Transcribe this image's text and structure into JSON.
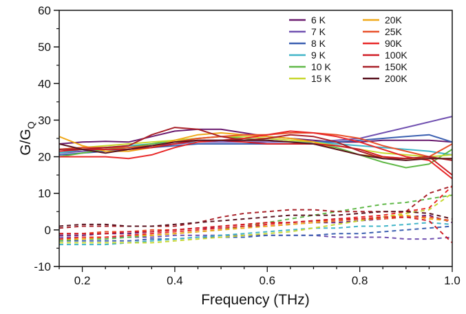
{
  "chart_data": {
    "type": "line",
    "xlabel": "Frequency (THz)",
    "ylabel_main": "G/G",
    "ylabel_sub": "Q",
    "xlim": [
      0.15,
      1.0
    ],
    "ylim": [
      -10,
      60
    ],
    "xticks": [
      0.2,
      0.4,
      0.6,
      0.8,
      1.0
    ],
    "xtick_labels": [
      "0.2",
      "0.4",
      "0.6",
      "0.8",
      "1.0"
    ],
    "yticks": [
      -10,
      0,
      10,
      20,
      30,
      40,
      50,
      60
    ],
    "ytick_labels": [
      "-10",
      "0",
      "10",
      "20",
      "30",
      "40",
      "50",
      "60"
    ],
    "grid": false,
    "legend_position": "top-right",
    "line_styles": {
      "real": "solid",
      "imaginary": "dashed"
    },
    "x": [
      0.15,
      0.2,
      0.25,
      0.3,
      0.35,
      0.4,
      0.45,
      0.5,
      0.55,
      0.6,
      0.65,
      0.7,
      0.75,
      0.8,
      0.85,
      0.9,
      0.95,
      1.0
    ],
    "series": [
      {
        "name": "6 K",
        "color": "#6a1b6f",
        "real": [
          23.5,
          24.0,
          24.2,
          24.0,
          25.5,
          27.0,
          27.5,
          27.5,
          26.5,
          25.5,
          25.0,
          24.5,
          24.0,
          24.0,
          24.5,
          24.5,
          24.5,
          24.0
        ],
        "imag": [
          -1.5,
          -1.5,
          -1.0,
          -1.0,
          -0.5,
          0.0,
          0.5,
          0.5,
          1.0,
          1.0,
          1.5,
          2.0,
          2.0,
          2.5,
          3.0,
          3.5,
          4.0,
          2.0
        ]
      },
      {
        "name": "7 K",
        "color": "#7050b0",
        "real": [
          21.0,
          21.5,
          22.0,
          22.5,
          23.0,
          23.5,
          24.0,
          24.0,
          24.0,
          24.0,
          24.0,
          24.0,
          24.5,
          25.0,
          26.5,
          28.0,
          29.5,
          31.0
        ],
        "imag": [
          -2.0,
          -2.0,
          -2.0,
          -2.0,
          -2.0,
          -1.5,
          -1.5,
          -1.5,
          -1.5,
          -1.5,
          -1.5,
          -1.5,
          -2.0,
          -2.0,
          -2.0,
          -2.5,
          -2.5,
          -2.0
        ]
      },
      {
        "name": "8 K",
        "color": "#3a5fb0",
        "real": [
          20.5,
          21.0,
          21.5,
          22.0,
          22.5,
          23.0,
          23.5,
          23.5,
          23.5,
          23.5,
          23.5,
          24.0,
          24.0,
          24.5,
          25.0,
          25.5,
          26.0,
          24.0
        ],
        "imag": [
          -3.0,
          -3.0,
          -3.0,
          -3.0,
          -2.5,
          -2.5,
          -2.0,
          -2.0,
          -2.0,
          -1.5,
          -1.5,
          -1.5,
          -1.0,
          -1.0,
          -0.5,
          0.0,
          0.5,
          1.0
        ]
      },
      {
        "name": "9 K",
        "color": "#40b4c8",
        "real": [
          21.0,
          22.0,
          22.5,
          23.0,
          23.5,
          24.0,
          24.0,
          24.5,
          24.5,
          24.5,
          24.0,
          24.0,
          23.5,
          23.0,
          22.5,
          22.0,
          21.5,
          20.5
        ],
        "imag": [
          -4.0,
          -4.0,
          -4.0,
          -3.5,
          -3.0,
          -2.5,
          -2.0,
          -1.5,
          -1.0,
          -0.5,
          0.0,
          0.5,
          0.5,
          1.0,
          1.0,
          1.5,
          2.0,
          1.5
        ]
      },
      {
        "name": "10 K",
        "color": "#60b848",
        "real": [
          20.0,
          21.0,
          22.0,
          22.5,
          23.5,
          24.5,
          25.0,
          25.5,
          25.0,
          24.5,
          24.0,
          23.5,
          22.5,
          20.5,
          18.5,
          17.0,
          18.0,
          22.0
        ],
        "imag": [
          -3.0,
          -2.5,
          -2.5,
          -2.0,
          -1.5,
          -1.0,
          -0.5,
          0.0,
          1.0,
          2.0,
          3.0,
          4.0,
          5.0,
          6.0,
          7.0,
          7.5,
          8.5,
          9.5
        ]
      },
      {
        "name": "15 K",
        "color": "#c8d830",
        "real": [
          22.0,
          22.5,
          23.0,
          23.5,
          24.0,
          24.5,
          25.0,
          25.5,
          25.5,
          25.0,
          24.5,
          24.0,
          23.0,
          22.0,
          21.0,
          20.5,
          20.0,
          20.5
        ],
        "imag": [
          -3.5,
          -3.5,
          -3.5,
          -3.5,
          -3.5,
          -3.0,
          -2.5,
          -2.0,
          -1.5,
          -1.0,
          -0.5,
          0.5,
          1.5,
          2.5,
          3.5,
          4.5,
          5.5,
          10.0
        ]
      },
      {
        "name": "20K",
        "color": "#f0a818",
        "real": [
          25.5,
          23.0,
          21.5,
          21.5,
          22.5,
          24.5,
          26.0,
          26.5,
          26.0,
          25.5,
          25.0,
          24.0,
          22.0,
          20.5,
          20.0,
          19.5,
          19.5,
          19.5
        ],
        "imag": [
          -2.5,
          -2.5,
          -2.0,
          -1.5,
          -1.5,
          -1.0,
          -0.5,
          0.0,
          0.5,
          1.0,
          1.5,
          2.0,
          2.5,
          3.0,
          3.5,
          4.0,
          3.0,
          2.5
        ]
      },
      {
        "name": "25K",
        "color": "#e8502a",
        "real": [
          22.0,
          22.5,
          22.5,
          22.5,
          23.0,
          24.0,
          25.0,
          25.5,
          26.0,
          26.0,
          26.5,
          26.5,
          26.0,
          25.0,
          23.0,
          21.5,
          20.0,
          23.5
        ],
        "imag": [
          -1.0,
          -1.0,
          -0.5,
          -0.5,
          0.0,
          0.0,
          0.5,
          1.0,
          1.5,
          2.0,
          2.0,
          2.5,
          2.5,
          3.0,
          3.0,
          3.5,
          3.5,
          2.5
        ]
      },
      {
        "name": "90K",
        "color": "#e82828",
        "real": [
          20.0,
          20.0,
          20.0,
          19.5,
          20.5,
          22.5,
          24.0,
          24.5,
          25.0,
          26.0,
          27.0,
          26.5,
          25.5,
          24.0,
          22.0,
          20.0,
          19.0,
          14.0
        ],
        "imag": [
          -2.5,
          -2.0,
          -2.0,
          -1.5,
          -1.0,
          -0.5,
          0.0,
          0.5,
          1.0,
          1.5,
          2.0,
          2.5,
          3.0,
          3.5,
          4.0,
          5.0,
          6.0,
          12.0
        ]
      },
      {
        "name": "100K",
        "color": "#d01c24",
        "real": [
          21.5,
          22.0,
          22.0,
          22.0,
          22.5,
          23.5,
          24.5,
          24.5,
          24.0,
          23.5,
          23.5,
          23.5,
          23.0,
          22.0,
          20.0,
          19.5,
          20.0,
          15.0
        ],
        "imag": [
          -1.0,
          -1.0,
          -1.0,
          -0.5,
          -0.5,
          0.0,
          0.5,
          1.0,
          1.5,
          2.0,
          2.0,
          2.5,
          3.0,
          3.0,
          3.5,
          3.5,
          2.5,
          -3.5
        ]
      },
      {
        "name": "150K",
        "color": "#a82028",
        "real": [
          22.0,
          22.0,
          22.5,
          23.0,
          26.0,
          28.0,
          27.5,
          25.5,
          24.5,
          25.0,
          26.0,
          25.5,
          24.0,
          21.5,
          19.5,
          19.5,
          20.0,
          19.0
        ],
        "imag": [
          0.5,
          1.0,
          1.0,
          1.0,
          1.0,
          1.0,
          2.0,
          3.5,
          4.5,
          5.0,
          5.5,
          5.5,
          5.0,
          5.0,
          5.0,
          5.0,
          10.0,
          12.0
        ]
      },
      {
        "name": "200K",
        "color": "#5a1420",
        "real": [
          23.5,
          22.0,
          21.0,
          22.0,
          23.0,
          24.0,
          24.5,
          24.5,
          24.5,
          24.5,
          24.0,
          23.5,
          22.0,
          20.5,
          19.5,
          19.0,
          19.5,
          19.5
        ],
        "imag": [
          1.0,
          1.5,
          1.5,
          1.0,
          1.0,
          1.5,
          2.0,
          2.5,
          3.0,
          3.5,
          4.0,
          4.0,
          4.0,
          4.5,
          5.0,
          5.0,
          4.5,
          3.0
        ]
      }
    ]
  }
}
